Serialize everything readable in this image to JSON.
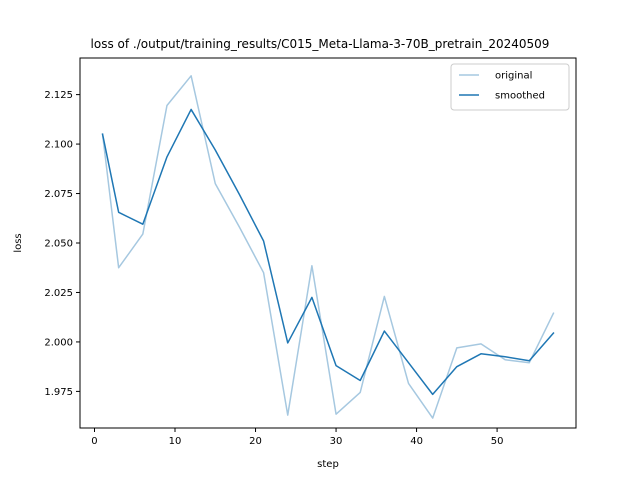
{
  "chart_data": {
    "type": "line",
    "title": "loss of ./output/training_results/C015_Meta-Llama-3-70B_pretrain_20240509",
    "xlabel": "step",
    "ylabel": "loss",
    "xlim": [
      -1.8,
      59.8
    ],
    "ylim": [
      1.9565,
      2.1435
    ],
    "x_ticks": [
      0,
      10,
      20,
      30,
      40,
      50
    ],
    "y_ticks": [
      1.975,
      2.0,
      2.025,
      2.05,
      2.075,
      2.1,
      2.125
    ],
    "x_tick_labels": [
      "0",
      "10",
      "20",
      "30",
      "40",
      "50"
    ],
    "y_tick_labels": [
      "1.975",
      "2.000",
      "2.025",
      "2.050",
      "2.075",
      "2.100",
      "2.125"
    ],
    "grid": false,
    "legend_position": "top-right",
    "series": [
      {
        "name": "original",
        "color": "#a6c8e0",
        "x": [
          1,
          3,
          6,
          9,
          12,
          15,
          18,
          21,
          24,
          27,
          30,
          33,
          36,
          39,
          42,
          45,
          48,
          51,
          54,
          57
        ],
        "y": [
          2.105,
          2.0375,
          2.0545,
          2.1195,
          2.1345,
          2.08,
          2.058,
          2.035,
          1.963,
          2.0385,
          1.9635,
          1.9745,
          2.023,
          1.979,
          1.9615,
          1.997,
          1.999,
          1.991,
          1.9895,
          2.0145
        ]
      },
      {
        "name": "smoothed",
        "color": "#1f77b4",
        "x": [
          1,
          3,
          6,
          9,
          12,
          15,
          18,
          21,
          24,
          27,
          30,
          33,
          36,
          39,
          42,
          45,
          48,
          51,
          54,
          57
        ],
        "y": [
          2.105,
          2.0655,
          2.0595,
          2.0935,
          2.1175,
          2.097,
          2.0745,
          2.051,
          1.9995,
          2.0225,
          1.988,
          1.9805,
          2.0055,
          1.9895,
          1.9735,
          1.9875,
          1.994,
          1.9925,
          1.9905,
          2.0045
        ]
      }
    ]
  }
}
